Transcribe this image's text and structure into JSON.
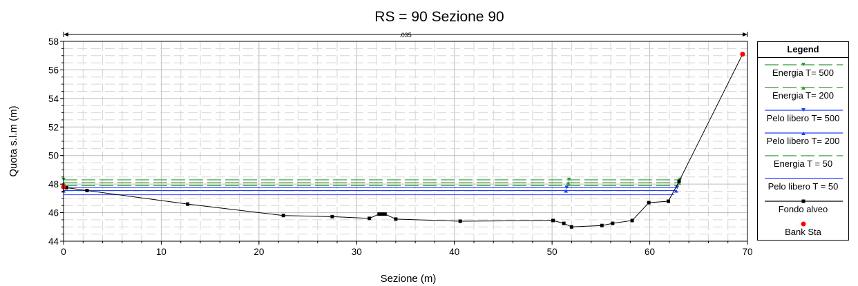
{
  "chart_data": {
    "type": "line",
    "title": "RS = 90    Sezione 90",
    "xlabel": "Sezione (m)",
    "ylabel": "Quota s.l.m (m)",
    "xlim": [
      0,
      70
    ],
    "ylim": [
      44,
      58
    ],
    "x_ticks": [
      "0",
      "10",
      "20",
      "30",
      "40",
      "50",
      "60",
      "70"
    ],
    "y_ticks": [
      "44",
      "46",
      "48",
      "50",
      "52",
      "54",
      "56",
      "58"
    ],
    "n_value_label": ".035",
    "legend_title": "Legend",
    "legend": [
      {
        "name": "Energia T= 500",
        "color": "#339933",
        "style": "dash",
        "marker": "tri-down"
      },
      {
        "name": "Energia T= 200",
        "color": "#339933",
        "style": "dash",
        "marker": "tri-up"
      },
      {
        "name": "Pelo libero T= 500",
        "color": "#1f3fff",
        "style": "solid",
        "marker": "tri-down"
      },
      {
        "name": "Pelo libero T= 200",
        "color": "#1f3fff",
        "style": "solid",
        "marker": "tri-up"
      },
      {
        "name": "Energia T = 50",
        "color": "#339933",
        "style": "dash",
        "marker": "none"
      },
      {
        "name": "Pelo libero T = 50",
        "color": "#1f3fff",
        "style": "solid",
        "marker": "none"
      },
      {
        "name": "Fondo alveo",
        "color": "#000000",
        "style": "solid",
        "marker": "square"
      },
      {
        "name": "Bank Sta",
        "color": "#ff0000",
        "style": "none",
        "marker": "circle"
      }
    ],
    "series": [
      {
        "name": "Fondo alveo",
        "x": [
          0,
          0.3,
          2.4,
          12.7,
          22.5,
          27.5,
          31.3,
          32.3,
          32.6,
          32.9,
          34.0,
          40.6,
          50.1,
          51.2,
          52.0,
          55.1,
          56.2,
          58.2,
          59.9,
          61.9,
          63.0,
          69.5
        ],
        "y": [
          47.8,
          47.75,
          47.55,
          46.6,
          45.8,
          45.72,
          45.6,
          45.9,
          45.9,
          45.9,
          45.55,
          45.4,
          45.45,
          45.25,
          45.0,
          45.1,
          45.25,
          45.45,
          46.7,
          46.8,
          48.2,
          57.1
        ]
      },
      {
        "name": "Energia T= 500",
        "x": [
          0,
          63.1
        ],
        "y": [
          48.3,
          48.3
        ]
      },
      {
        "name": "Energia T= 200",
        "x": [
          0,
          63.0
        ],
        "y": [
          48.1,
          48.1
        ]
      },
      {
        "name": "Energia T = 50",
        "x": [
          0,
          62.9
        ],
        "y": [
          47.9,
          47.9
        ]
      },
      {
        "name": "Pelo libero T= 500",
        "x": [
          0,
          62.8
        ],
        "y": [
          47.75,
          47.75
        ]
      },
      {
        "name": "Pelo libero T= 200",
        "x": [
          0,
          62.7
        ],
        "y": [
          47.55,
          47.55
        ]
      },
      {
        "name": "Pelo libero T = 50",
        "x": [
          0,
          62.5
        ],
        "y": [
          47.25,
          47.25
        ]
      },
      {
        "name": "Bank Sta",
        "x": [
          0,
          69.5
        ],
        "y": [
          47.8,
          57.1
        ]
      }
    ],
    "grid": true
  }
}
